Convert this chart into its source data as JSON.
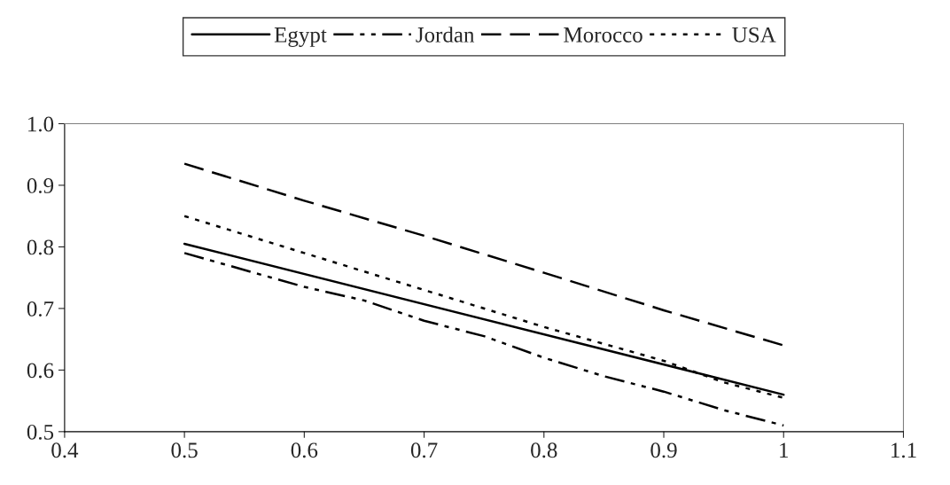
{
  "chart_data": {
    "type": "line",
    "xlim": [
      0.4,
      1.1
    ],
    "xticks": [
      0.4,
      0.5,
      0.6,
      0.7,
      0.8,
      0.9,
      1,
      1.1
    ],
    "ylim": [
      0.5,
      1.0
    ],
    "yticks": [
      {
        "value": 0.5,
        "label": "0.5"
      },
      {
        "value": 0.6,
        "label": "0.6"
      },
      {
        "value": 0.7,
        "label": "0.7"
      },
      {
        "value": 0.8,
        "label": "0.8"
      },
      {
        "value": 0.9,
        "label": "0.9"
      },
      {
        "value": 1.0,
        "label": "1.0"
      }
    ],
    "grid": false,
    "legend": "top",
    "marker": "none",
    "series": [
      {
        "name": "Egypt",
        "color": "#000000",
        "line_style": "solid",
        "x": [
          0.5,
          1.0
        ],
        "values": [
          0.805,
          0.56
        ]
      },
      {
        "name": "Jordan",
        "color": "#000000",
        "line_style": "dashdot",
        "x": [
          0.5,
          0.6,
          0.65,
          0.7,
          0.75,
          0.8,
          0.85,
          0.9,
          0.95,
          1.0
        ],
        "values": [
          0.79,
          0.735,
          0.713,
          0.68,
          0.655,
          0.62,
          0.59,
          0.565,
          0.535,
          0.51
        ]
      },
      {
        "name": "Morocco",
        "color": "#000000",
        "line_style": "dashed",
        "x": [
          0.5,
          0.6,
          0.7,
          0.8,
          0.9,
          1.0
        ],
        "values": [
          0.935,
          0.875,
          0.818,
          0.758,
          0.697,
          0.64
        ]
      },
      {
        "name": "USA",
        "color": "#000000",
        "line_style": "dotted",
        "x": [
          0.5,
          0.6,
          0.7,
          0.8,
          0.9,
          0.95,
          1.0
        ],
        "values": [
          0.85,
          0.79,
          0.73,
          0.67,
          0.615,
          0.58,
          0.555
        ]
      }
    ]
  }
}
